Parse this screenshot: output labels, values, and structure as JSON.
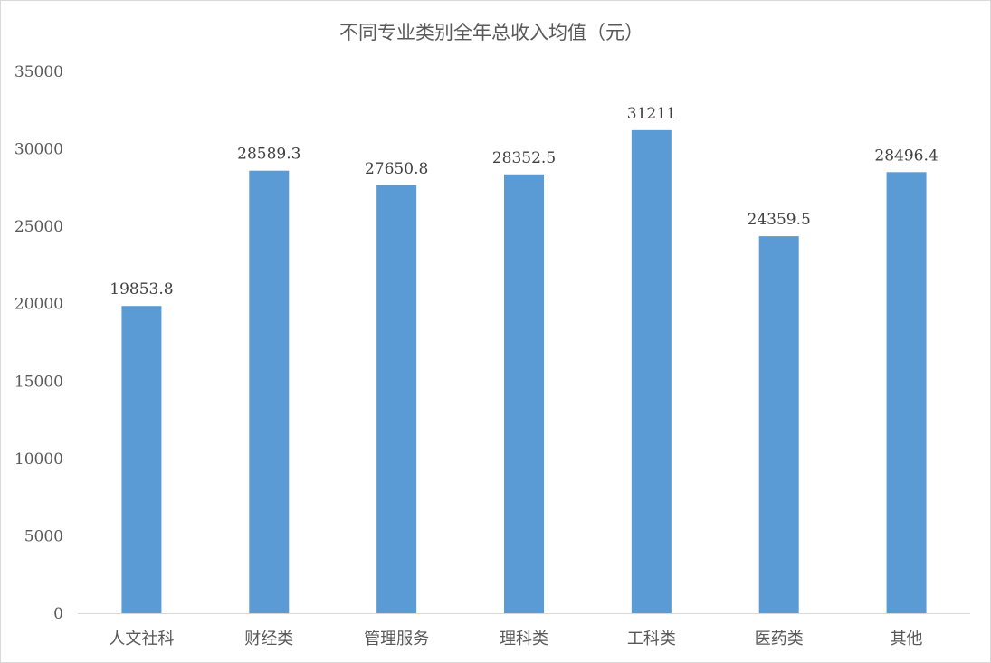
{
  "chart_data": {
    "type": "bar",
    "title": "不同专业类别全年总收入均值（元）",
    "categories": [
      "人文社科",
      "财经类",
      "管理服务",
      "理科类",
      "工科类",
      "医药类",
      "其他"
    ],
    "values": [
      19853.8,
      28589.3,
      27650.8,
      28352.5,
      31211,
      24359.5,
      28496.4
    ],
    "value_labels": [
      "19853.8",
      "28589.3",
      "27650.8",
      "28352.5",
      "31211",
      "24359.5",
      "28496.4"
    ],
    "xlabel": "",
    "ylabel": "",
    "ylim": [
      0,
      35000
    ],
    "yticks": [
      0,
      5000,
      10000,
      15000,
      20000,
      25000,
      30000,
      35000
    ],
    "ytick_labels": [
      "0",
      "5000",
      "10000",
      "15000",
      "20000",
      "25000",
      "30000",
      "35000"
    ],
    "grid": false,
    "legend": "none",
    "bar_color": "#5b9bd5",
    "data_labels": true
  }
}
